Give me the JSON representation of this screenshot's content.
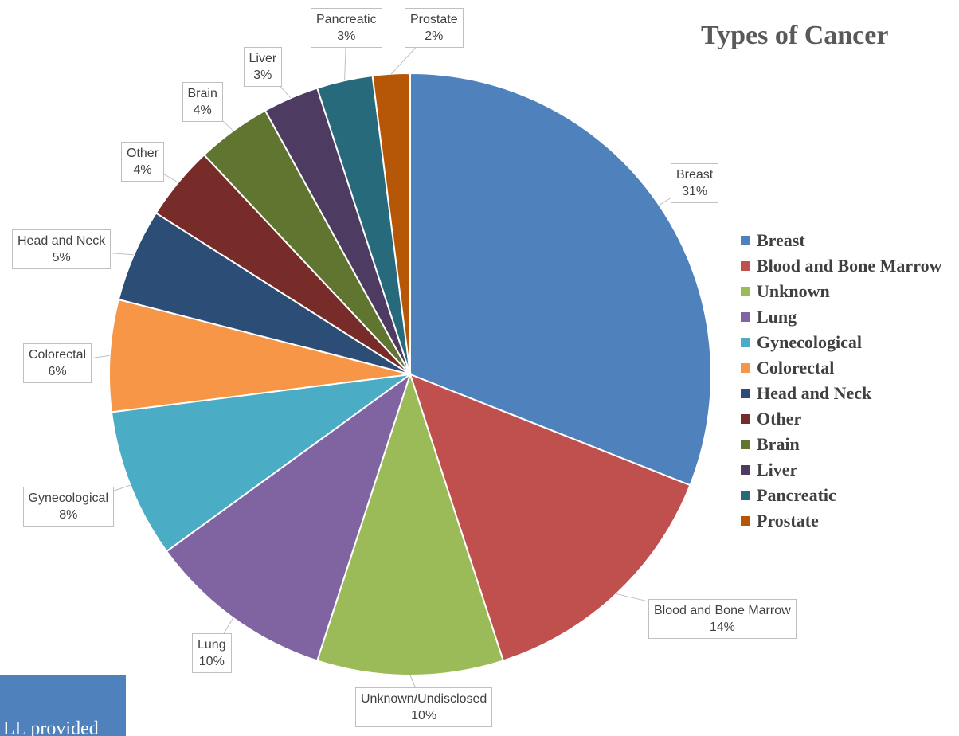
{
  "chart_data": {
    "type": "pie",
    "title": "Types of Cancer",
    "legend_position": "right",
    "slices": [
      {
        "legend": "Breast",
        "label": "Breast",
        "value": 31,
        "value_text": "31%",
        "color": "#4f81bd"
      },
      {
        "legend": "Blood and Bone Marrow",
        "label": "Blood and Bone Marrow",
        "value": 14,
        "value_text": "14%",
        "color": "#c0504d"
      },
      {
        "legend": "Unknown",
        "label": "Unknown/Undisclosed",
        "value": 10,
        "value_text": "10%",
        "color": "#9bbb59"
      },
      {
        "legend": "Lung",
        "label": "Lung",
        "value": 10,
        "value_text": "10%",
        "color": "#8064a2"
      },
      {
        "legend": "Gynecological",
        "label": "Gynecological",
        "value": 8,
        "value_text": "8%",
        "color": "#4bacc6"
      },
      {
        "legend": "Colorectal",
        "label": "Colorectal",
        "value": 6,
        "value_text": "6%",
        "color": "#f79646"
      },
      {
        "legend": "Head and Neck",
        "label": "Head and Neck",
        "value": 5,
        "value_text": "5%",
        "color": "#2c4d75"
      },
      {
        "legend": "Other",
        "label": "Other",
        "value": 4,
        "value_text": "4%",
        "color": "#772c2a"
      },
      {
        "legend": "Brain",
        "label": "Brain",
        "value": 4,
        "value_text": "4%",
        "color": "#5f7530"
      },
      {
        "legend": "Liver",
        "label": "Liver",
        "value": 3,
        "value_text": "3%",
        "color": "#4d3b62"
      },
      {
        "legend": "Pancreatic",
        "label": "Pancreatic",
        "value": 3,
        "value_text": "3%",
        "color": "#276a7c"
      },
      {
        "legend": "Prostate",
        "label": "Prostate",
        "value": 2,
        "value_text": "2%",
        "color": "#b65708"
      }
    ]
  },
  "corner_box": {
    "text": "LL provided"
  }
}
